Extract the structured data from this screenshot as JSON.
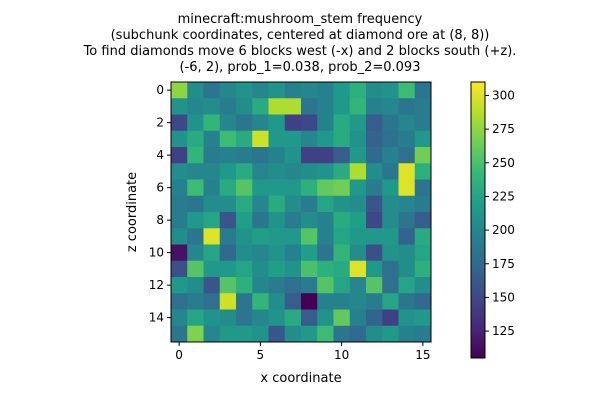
{
  "chart_data": {
    "type": "heatmap",
    "title_lines": [
      "minecraft:mushroom_stem frequency",
      "(subchunk coordinates, centered at diamond ore at (8, 8))",
      "To find diamonds move 6 blocks west (-x) and 2 blocks south (+z).",
      "(-6, 2), prob_1=0.038, prob_2=0.093"
    ],
    "xlabel": "x coordinate",
    "ylabel": "z coordinate",
    "x_ticks": [
      0,
      5,
      10,
      15
    ],
    "y_ticks": [
      0,
      2,
      4,
      6,
      8,
      10,
      12,
      14
    ],
    "colorbar_ticks": [
      125,
      150,
      175,
      200,
      225,
      250,
      275,
      300
    ],
    "vmin": 105,
    "vmax": 310,
    "colormap": "viridis",
    "values": [
      [
        275,
        205,
        185,
        200,
        210,
        200,
        210,
        195,
        200,
        195,
        215,
        235,
        205,
        210,
        245,
        185
      ],
      [
        210,
        200,
        205,
        190,
        205,
        230,
        285,
        285,
        185,
        195,
        215,
        240,
        195,
        200,
        185,
        190
      ],
      [
        150,
        210,
        240,
        200,
        185,
        200,
        215,
        145,
        150,
        195,
        230,
        215,
        165,
        185,
        200,
        190
      ],
      [
        210,
        230,
        195,
        245,
        230,
        295,
        215,
        215,
        200,
        215,
        230,
        210,
        170,
        180,
        190,
        215
      ],
      [
        145,
        240,
        190,
        195,
        190,
        185,
        195,
        210,
        145,
        145,
        165,
        215,
        175,
        195,
        180,
        265
      ],
      [
        205,
        200,
        200,
        215,
        230,
        200,
        205,
        200,
        205,
        210,
        230,
        285,
        205,
        185,
        300,
        235
      ],
      [
        195,
        245,
        195,
        230,
        255,
        215,
        215,
        215,
        235,
        260,
        265,
        215,
        190,
        215,
        300,
        185
      ],
      [
        190,
        185,
        205,
        205,
        230,
        200,
        230,
        205,
        190,
        225,
        210,
        205,
        160,
        205,
        200,
        190
      ],
      [
        190,
        215,
        225,
        160,
        220,
        185,
        210,
        190,
        205,
        195,
        230,
        220,
        150,
        205,
        185,
        165
      ],
      [
        205,
        185,
        300,
        190,
        210,
        220,
        215,
        215,
        255,
        195,
        225,
        215,
        215,
        215,
        170,
        230
      ],
      [
        115,
        200,
        225,
        175,
        205,
        200,
        210,
        195,
        220,
        185,
        240,
        205,
        155,
        210,
        205,
        225
      ],
      [
        155,
        255,
        215,
        215,
        225,
        205,
        220,
        210,
        250,
        235,
        230,
        300,
        215,
        180,
        205,
        235
      ],
      [
        215,
        205,
        160,
        255,
        235,
        200,
        190,
        180,
        190,
        255,
        225,
        200,
        255,
        180,
        225,
        205
      ],
      [
        180,
        190,
        180,
        295,
        185,
        240,
        205,
        165,
        105,
        195,
        195,
        200,
        190,
        225,
        185,
        175
      ],
      [
        200,
        225,
        210,
        205,
        185,
        200,
        210,
        230,
        165,
        210,
        260,
        195,
        170,
        145,
        210,
        215
      ],
      [
        185,
        270,
        200,
        215,
        215,
        210,
        160,
        205,
        215,
        245,
        185,
        175,
        205,
        215,
        195,
        190
      ]
    ]
  }
}
